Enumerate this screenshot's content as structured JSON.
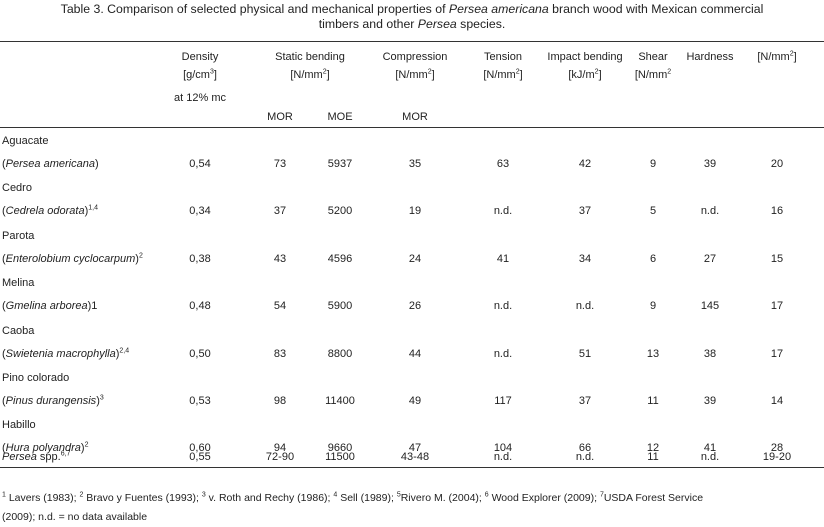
{
  "caption": {
    "l1_a": "Table 3. Comparison of selected physical and mechanical properties of ",
    "l1_b": "Persea americana",
    "l1_c": " branch wood with Mexican commercial",
    "l2_a": "timbers and other ",
    "l2_b": "Persea",
    "l2_c": " species."
  },
  "headers": {
    "density_1": "Density",
    "density_2": "[g/cm",
    "density_2_sup": "3",
    "density_2_end": "]",
    "density_3": "at 12% mc",
    "static_1": "Static bending",
    "static_2": "[N/mm",
    "static_2_sup": "2",
    "static_2_end": "]",
    "compression_1": "Compression",
    "compression_2": "[N/mm",
    "compression_2_sup": "2",
    "compression_2_end": "]",
    "tension_1": "Tension",
    "tension_2": "[N/mm",
    "tension_2_sup": "2",
    "tension_2_end": "]",
    "impact_1": "Impact bending",
    "impact_2": "[kJ/m",
    "impact_2_sup": "2",
    "impact_2_end": "]",
    "shear_1": "Shear",
    "shear_2": "[N/mm",
    "shear_2_sup": "2",
    "hardness_1": "Hardness",
    "last_1": "[N/mm",
    "last_1_sup": "2",
    "last_1_end": "]",
    "mor_static": "MOR",
    "moe_static": "MOE",
    "mor_compression": "MOR"
  },
  "rows": [
    {
      "common": "Aguacate",
      "sci": "Persea americana",
      "sup": "",
      "tail": ")",
      "density": "0,54",
      "mor": "73",
      "moe": "5937",
      "comp": "35",
      "tension": "63",
      "impact": "42",
      "shear": "9",
      "hardness": "39",
      "last": "20"
    },
    {
      "common": "Cedro",
      "sci": "Cedrela odorata",
      "sup": "1,4",
      "tail": ")",
      "density": "0,34",
      "mor": "37",
      "moe": "5200",
      "comp": "19",
      "tension": "n.d.",
      "impact": "37",
      "shear": "5",
      "hardness": "n.d.",
      "last": "16"
    },
    {
      "common": "Parota",
      "sci": "Enterolobium cyclocarpum",
      "sup": "2",
      "tail": ")",
      "density": "0,38",
      "mor": "43",
      "moe": "4596",
      "comp": "24",
      "tension": "41",
      "impact": "34",
      "shear": "6",
      "hardness": "27",
      "last": "15"
    },
    {
      "common": "Melina",
      "sci": "Gmelina arborea",
      "sup": "",
      "tail": ")1",
      "density": "0,48",
      "mor": "54",
      "moe": "5900",
      "comp": "26",
      "tension": "n.d.",
      "impact": "n.d.",
      "shear": "9",
      "hardness": "145",
      "last": "17"
    },
    {
      "common": "Caoba",
      "sci": "Swietenia macrophylla",
      "sup": "2,4",
      "tail": ")",
      "density": "0,50",
      "mor": "83",
      "moe": "8800",
      "comp": "44",
      "tension": "n.d.",
      "impact": "51",
      "shear": "13",
      "hardness": "38",
      "last": "17"
    },
    {
      "common": "Pino colorado",
      "sci": "Pinus durangensis",
      "sup": "3",
      "tail": ")",
      "density": "0,53",
      "mor": "98",
      "moe": "11400",
      "comp": "49",
      "tension": "117",
      "impact": "37",
      "shear": "11",
      "hardness": "39",
      "last": "14"
    },
    {
      "common": "Habillo",
      "sci": "Hura polyandra",
      "sup": "2",
      "tail": ")",
      "density": "0,60",
      "mor": "94",
      "moe": "9660",
      "comp": "47",
      "tension": "104",
      "impact": "66",
      "shear": "12",
      "hardness": "41",
      "last": "28"
    }
  ],
  "persea": {
    "name": "Persea",
    "rest": " spp.",
    "sup": "6,7",
    "density": "0,55",
    "mor": "72-90",
    "moe": "11500",
    "comp": "43-48",
    "tension": "n.d.",
    "impact": "n.d.",
    "shear": "11",
    "hardness": "n.d.",
    "last": "19-20"
  },
  "footnotes": {
    "line1": [
      {
        "sup": "1",
        "text": " Lavers (1983); "
      },
      {
        "sup": "2",
        "text": " Bravo y Fuentes (1993); "
      },
      {
        "sup": "3",
        "text": " v. Roth and Rechy (1986); "
      },
      {
        "sup": "4",
        "text": " Sell (1989); "
      },
      {
        "sup": "5",
        "text": "Rivero M. (2004); "
      },
      {
        "sup": "6",
        "text": " Wood Explorer (2009); "
      },
      {
        "sup": "7",
        "text": "USDA Forest Service"
      }
    ],
    "line2": "(2009); n.d. = no data available"
  }
}
